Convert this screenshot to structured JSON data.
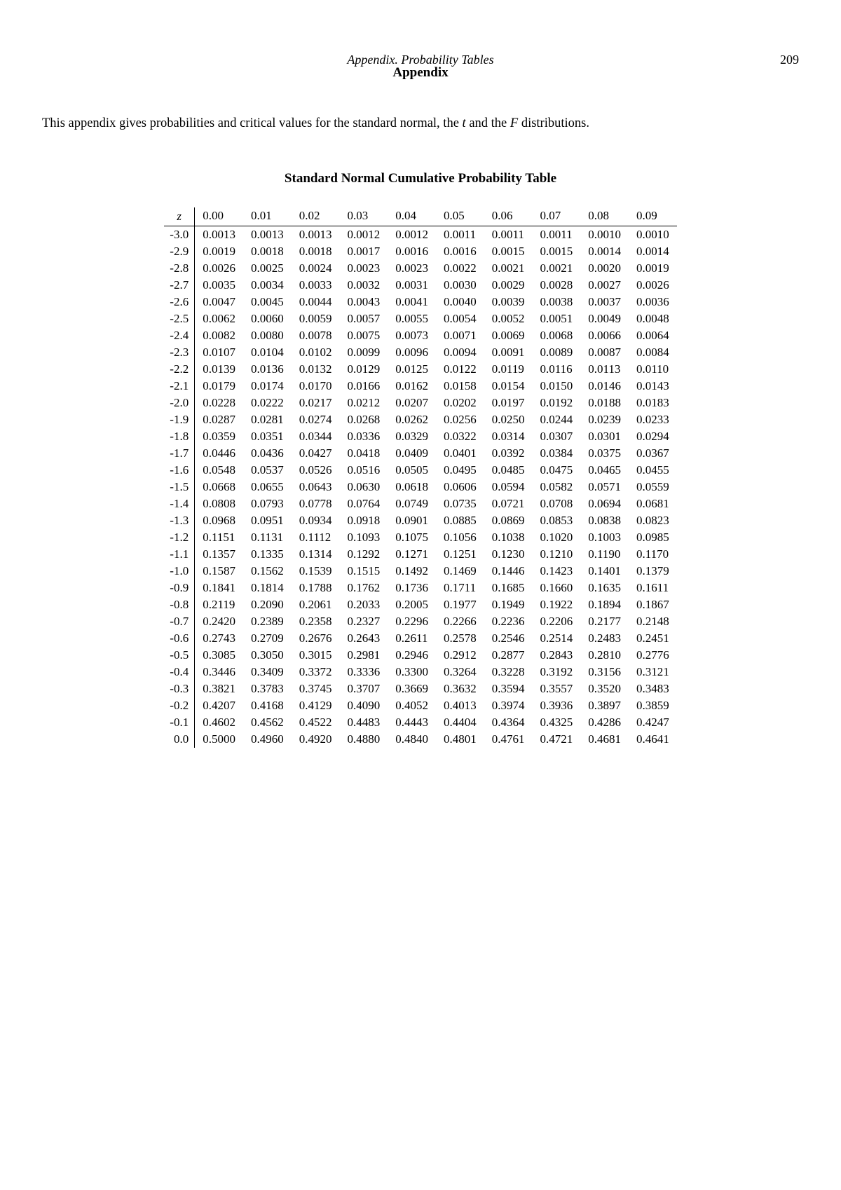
{
  "header": {
    "italic_line": "Appendix. Probability Tables",
    "bold_line": "Appendix",
    "page_number": "209"
  },
  "intro": {
    "prefix": "This appendix gives probabilities and critical values for the standard normal, the ",
    "t": "t",
    "mid": " and the ",
    "F": "F",
    "suffix": " distributions."
  },
  "table": {
    "title": "Standard Normal Cumulative Probability Table",
    "z_header": "z",
    "col_headers": [
      "0.00",
      "0.01",
      "0.02",
      "0.03",
      "0.04",
      "0.05",
      "0.06",
      "0.07",
      "0.08",
      "0.09"
    ],
    "rows": [
      {
        "z": "-3.0",
        "v": [
          "0.0013",
          "0.0013",
          "0.0013",
          "0.0012",
          "0.0012",
          "0.0011",
          "0.0011",
          "0.0011",
          "0.0010",
          "0.0010"
        ]
      },
      {
        "z": "-2.9",
        "v": [
          "0.0019",
          "0.0018",
          "0.0018",
          "0.0017",
          "0.0016",
          "0.0016",
          "0.0015",
          "0.0015",
          "0.0014",
          "0.0014"
        ]
      },
      {
        "z": "-2.8",
        "v": [
          "0.0026",
          "0.0025",
          "0.0024",
          "0.0023",
          "0.0023",
          "0.0022",
          "0.0021",
          "0.0021",
          "0.0020",
          "0.0019"
        ]
      },
      {
        "z": "-2.7",
        "v": [
          "0.0035",
          "0.0034",
          "0.0033",
          "0.0032",
          "0.0031",
          "0.0030",
          "0.0029",
          "0.0028",
          "0.0027",
          "0.0026"
        ]
      },
      {
        "z": "-2.6",
        "v": [
          "0.0047",
          "0.0045",
          "0.0044",
          "0.0043",
          "0.0041",
          "0.0040",
          "0.0039",
          "0.0038",
          "0.0037",
          "0.0036"
        ]
      },
      {
        "z": "-2.5",
        "v": [
          "0.0062",
          "0.0060",
          "0.0059",
          "0.0057",
          "0.0055",
          "0.0054",
          "0.0052",
          "0.0051",
          "0.0049",
          "0.0048"
        ]
      },
      {
        "z": "-2.4",
        "v": [
          "0.0082",
          "0.0080",
          "0.0078",
          "0.0075",
          "0.0073",
          "0.0071",
          "0.0069",
          "0.0068",
          "0.0066",
          "0.0064"
        ]
      },
      {
        "z": "-2.3",
        "v": [
          "0.0107",
          "0.0104",
          "0.0102",
          "0.0099",
          "0.0096",
          "0.0094",
          "0.0091",
          "0.0089",
          "0.0087",
          "0.0084"
        ]
      },
      {
        "z": "-2.2",
        "v": [
          "0.0139",
          "0.0136",
          "0.0132",
          "0.0129",
          "0.0125",
          "0.0122",
          "0.0119",
          "0.0116",
          "0.0113",
          "0.0110"
        ]
      },
      {
        "z": "-2.1",
        "v": [
          "0.0179",
          "0.0174",
          "0.0170",
          "0.0166",
          "0.0162",
          "0.0158",
          "0.0154",
          "0.0150",
          "0.0146",
          "0.0143"
        ]
      },
      {
        "z": "-2.0",
        "v": [
          "0.0228",
          "0.0222",
          "0.0217",
          "0.0212",
          "0.0207",
          "0.0202",
          "0.0197",
          "0.0192",
          "0.0188",
          "0.0183"
        ]
      },
      {
        "z": "-1.9",
        "v": [
          "0.0287",
          "0.0281",
          "0.0274",
          "0.0268",
          "0.0262",
          "0.0256",
          "0.0250",
          "0.0244",
          "0.0239",
          "0.0233"
        ]
      },
      {
        "z": "-1.8",
        "v": [
          "0.0359",
          "0.0351",
          "0.0344",
          "0.0336",
          "0.0329",
          "0.0322",
          "0.0314",
          "0.0307",
          "0.0301",
          "0.0294"
        ]
      },
      {
        "z": "-1.7",
        "v": [
          "0.0446",
          "0.0436",
          "0.0427",
          "0.0418",
          "0.0409",
          "0.0401",
          "0.0392",
          "0.0384",
          "0.0375",
          "0.0367"
        ]
      },
      {
        "z": "-1.6",
        "v": [
          "0.0548",
          "0.0537",
          "0.0526",
          "0.0516",
          "0.0505",
          "0.0495",
          "0.0485",
          "0.0475",
          "0.0465",
          "0.0455"
        ]
      },
      {
        "z": "-1.5",
        "v": [
          "0.0668",
          "0.0655",
          "0.0643",
          "0.0630",
          "0.0618",
          "0.0606",
          "0.0594",
          "0.0582",
          "0.0571",
          "0.0559"
        ]
      },
      {
        "z": "-1.4",
        "v": [
          "0.0808",
          "0.0793",
          "0.0778",
          "0.0764",
          "0.0749",
          "0.0735",
          "0.0721",
          "0.0708",
          "0.0694",
          "0.0681"
        ]
      },
      {
        "z": "-1.3",
        "v": [
          "0.0968",
          "0.0951",
          "0.0934",
          "0.0918",
          "0.0901",
          "0.0885",
          "0.0869",
          "0.0853",
          "0.0838",
          "0.0823"
        ]
      },
      {
        "z": "-1.2",
        "v": [
          "0.1151",
          "0.1131",
          "0.1112",
          "0.1093",
          "0.1075",
          "0.1056",
          "0.1038",
          "0.1020",
          "0.1003",
          "0.0985"
        ]
      },
      {
        "z": "-1.1",
        "v": [
          "0.1357",
          "0.1335",
          "0.1314",
          "0.1292",
          "0.1271",
          "0.1251",
          "0.1230",
          "0.1210",
          "0.1190",
          "0.1170"
        ]
      },
      {
        "z": "-1.0",
        "v": [
          "0.1587",
          "0.1562",
          "0.1539",
          "0.1515",
          "0.1492",
          "0.1469",
          "0.1446",
          "0.1423",
          "0.1401",
          "0.1379"
        ]
      },
      {
        "z": "-0.9",
        "v": [
          "0.1841",
          "0.1814",
          "0.1788",
          "0.1762",
          "0.1736",
          "0.1711",
          "0.1685",
          "0.1660",
          "0.1635",
          "0.1611"
        ]
      },
      {
        "z": "-0.8",
        "v": [
          "0.2119",
          "0.2090",
          "0.2061",
          "0.2033",
          "0.2005",
          "0.1977",
          "0.1949",
          "0.1922",
          "0.1894",
          "0.1867"
        ]
      },
      {
        "z": "-0.7",
        "v": [
          "0.2420",
          "0.2389",
          "0.2358",
          "0.2327",
          "0.2296",
          "0.2266",
          "0.2236",
          "0.2206",
          "0.2177",
          "0.2148"
        ]
      },
      {
        "z": "-0.6",
        "v": [
          "0.2743",
          "0.2709",
          "0.2676",
          "0.2643",
          "0.2611",
          "0.2578",
          "0.2546",
          "0.2514",
          "0.2483",
          "0.2451"
        ]
      },
      {
        "z": "-0.5",
        "v": [
          "0.3085",
          "0.3050",
          "0.3015",
          "0.2981",
          "0.2946",
          "0.2912",
          "0.2877",
          "0.2843",
          "0.2810",
          "0.2776"
        ]
      },
      {
        "z": "-0.4",
        "v": [
          "0.3446",
          "0.3409",
          "0.3372",
          "0.3336",
          "0.3300",
          "0.3264",
          "0.3228",
          "0.3192",
          "0.3156",
          "0.3121"
        ]
      },
      {
        "z": "-0.3",
        "v": [
          "0.3821",
          "0.3783",
          "0.3745",
          "0.3707",
          "0.3669",
          "0.3632",
          "0.3594",
          "0.3557",
          "0.3520",
          "0.3483"
        ]
      },
      {
        "z": "-0.2",
        "v": [
          "0.4207",
          "0.4168",
          "0.4129",
          "0.4090",
          "0.4052",
          "0.4013",
          "0.3974",
          "0.3936",
          "0.3897",
          "0.3859"
        ]
      },
      {
        "z": "-0.1",
        "v": [
          "0.4602",
          "0.4562",
          "0.4522",
          "0.4483",
          "0.4443",
          "0.4404",
          "0.4364",
          "0.4325",
          "0.4286",
          "0.4247"
        ]
      },
      {
        "z": "0.0",
        "v": [
          "0.5000",
          "0.4960",
          "0.4920",
          "0.4880",
          "0.4840",
          "0.4801",
          "0.4761",
          "0.4721",
          "0.4681",
          "0.4641"
        ]
      }
    ]
  }
}
